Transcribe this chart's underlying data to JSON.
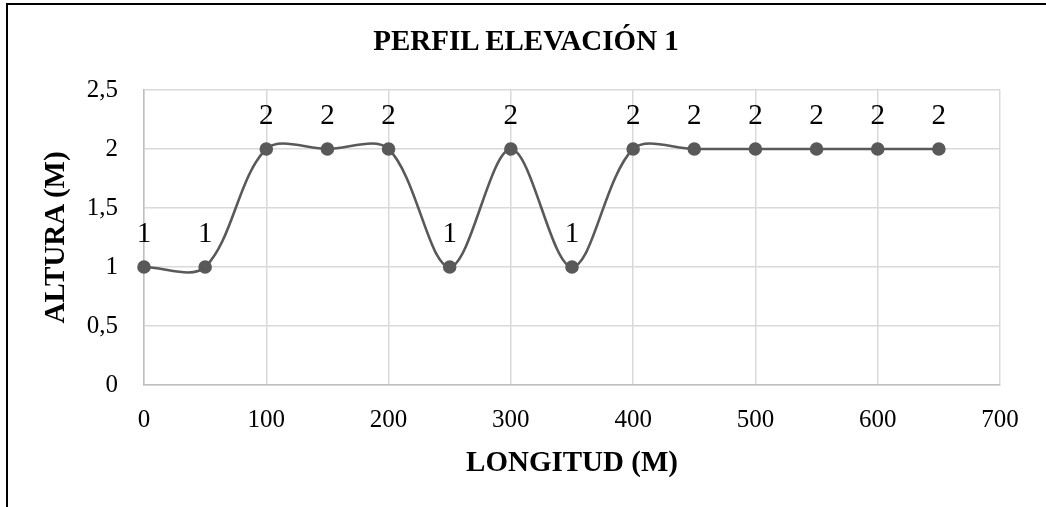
{
  "chart_data": {
    "type": "line",
    "title": "PERFIL ELEVACIÓN 1",
    "xlabel": "LONGITUD (M)",
    "ylabel": "ALTURA (M)",
    "x": [
      0,
      50,
      100,
      150,
      200,
      250,
      300,
      350,
      400,
      450,
      500,
      550,
      600,
      650
    ],
    "series": [
      {
        "color": "#595959",
        "values": [
          1,
          1,
          2,
          2,
          2,
          1,
          2,
          1,
          2,
          2,
          2,
          2,
          2,
          2
        ]
      }
    ],
    "xlim": [
      0,
      700
    ],
    "xticks": [
      0,
      100,
      200,
      300,
      400,
      500,
      600,
      700
    ],
    "ylim": [
      0,
      2.5
    ],
    "yticks": [
      0,
      {
        "value": 0.5,
        "label": "0,5"
      },
      1,
      {
        "value": 1.5,
        "label": "1,5"
      },
      2,
      {
        "value": 2.5,
        "label": "2,5"
      }
    ],
    "grid": true,
    "marker": "circle",
    "line_style": "solid",
    "data_labels": true
  }
}
